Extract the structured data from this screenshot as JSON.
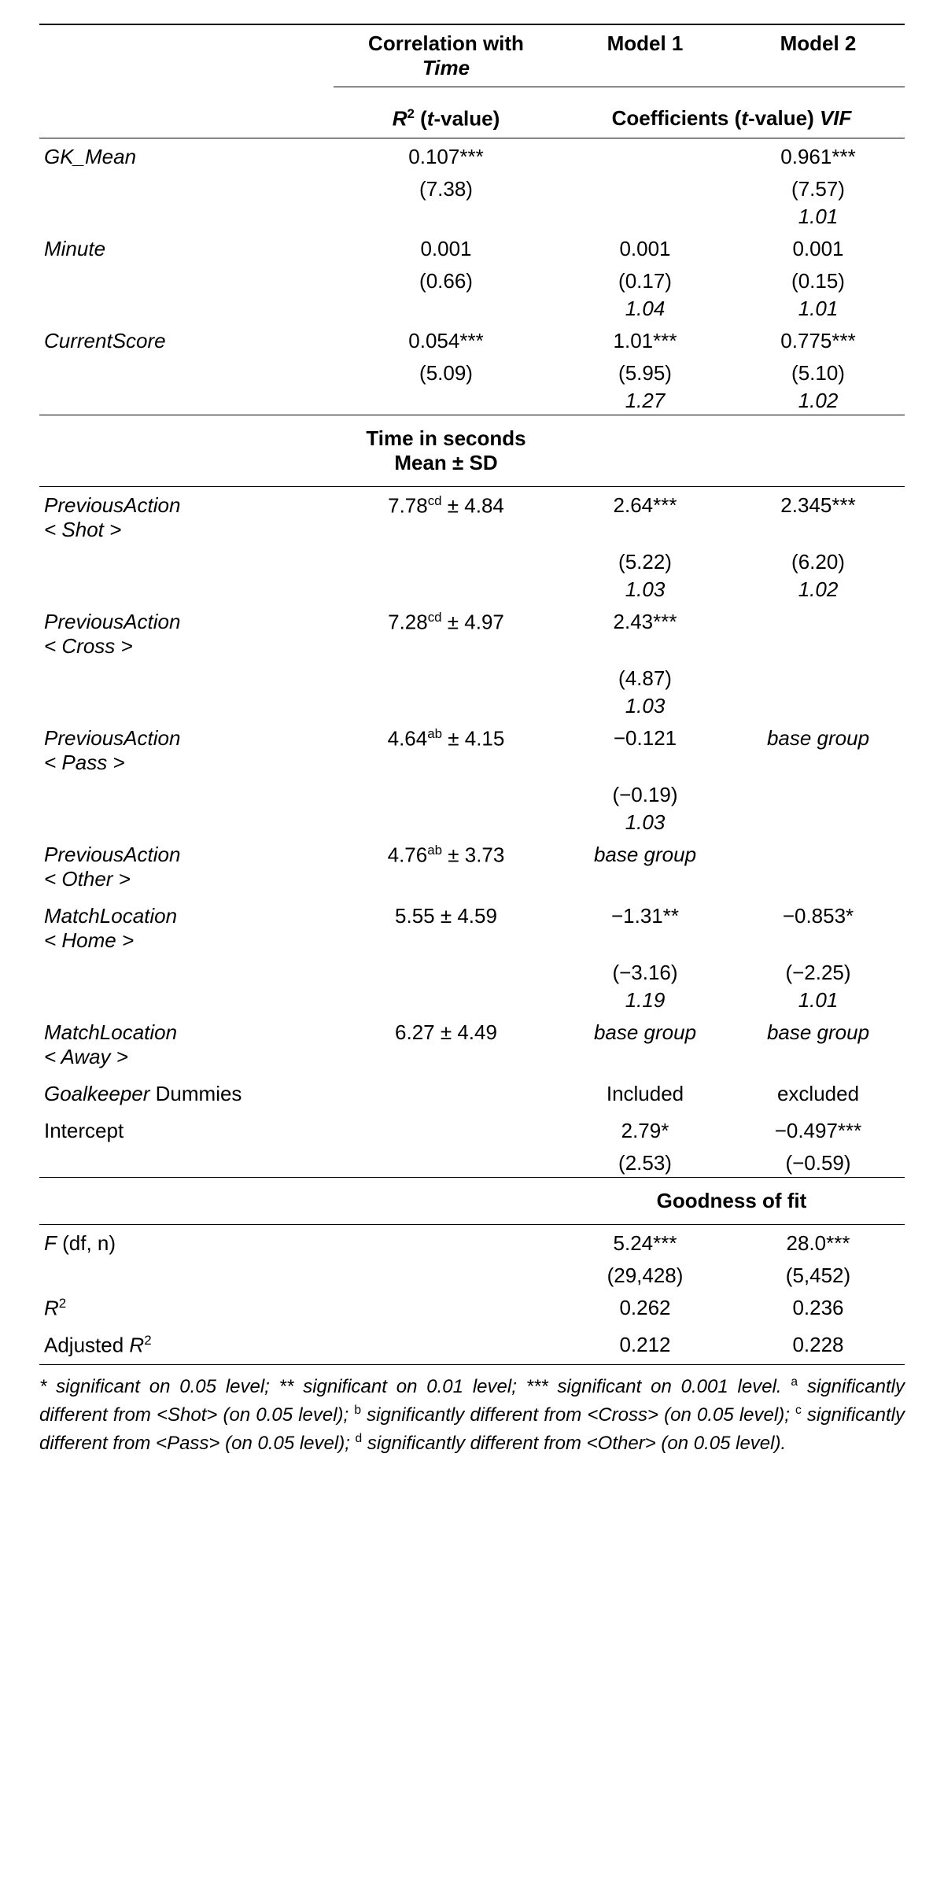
{
  "header": {
    "corr_title_a": "Correlation with",
    "corr_title_b": "Time",
    "model1": "Model 1",
    "model2": "Model 2",
    "r2_t": "R",
    "r2_t_sup": "2",
    "r2_t_rest": " (t-value)",
    "coef_a": "Coefficients (",
    "coef_b": "t",
    "coef_c": "-value) ",
    "coef_d": "VIF"
  },
  "rows1": {
    "gk_label": "GK_Mean",
    "gk_c1a": "0.107***",
    "gk_c1b": "(7.38)",
    "gk_c3a": "0.961***",
    "gk_c3b": "(7.57)",
    "gk_c3c": "1.01",
    "min_label": "Minute",
    "min_c1a": "0.001",
    "min_c1b": "(0.66)",
    "min_c2a": "0.001",
    "min_c2b": "(0.17)",
    "min_c2c": "1.04",
    "min_c3a": "0.001",
    "min_c3b": "(0.15)",
    "min_c3c": "1.01",
    "cs_label": "CurrentScore",
    "cs_c1a": "0.054***",
    "cs_c1b": "(5.09)",
    "cs_c2a": "1.01***",
    "cs_c2b": "(5.95)",
    "cs_c2c": "1.27",
    "cs_c3a": "0.775***",
    "cs_c3b": "(5.10)",
    "cs_c3c": "1.02"
  },
  "mid": {
    "timehdr_a": "Time in seconds",
    "timehdr_b": "Mean ± SD"
  },
  "rows2": {
    "pa_shot_l1": "PreviousAction",
    "pa_shot_l2": "< Shot >",
    "pa_shot_c1a": "7.78",
    "pa_shot_c1sup": "cd",
    "pa_shot_c1b": " ± 4.84",
    "pa_shot_c2a": "2.64***",
    "pa_shot_c2b": "(5.22)",
    "pa_shot_c2c": "1.03",
    "pa_shot_c3a": "2.345***",
    "pa_shot_c3b": "(6.20)",
    "pa_shot_c3c": "1.02",
    "pa_cross_l1": "PreviousAction",
    "pa_cross_l2": "< Cross >",
    "pa_cross_c1a": "7.28",
    "pa_cross_c1sup": "cd",
    "pa_cross_c1b": " ± 4.97",
    "pa_cross_c2a": "2.43***",
    "pa_cross_c2b": "(4.87)",
    "pa_cross_c2c": "1.03",
    "pa_pass_l1": "PreviousAction",
    "pa_pass_l2": "< Pass >",
    "pa_pass_c1a": "4.64",
    "pa_pass_c1sup": "ab",
    "pa_pass_c1b": " ± 4.15",
    "pa_pass_c2a": "−0.121",
    "pa_pass_c2b": "(−0.19)",
    "pa_pass_c2c": "1.03",
    "pa_pass_c3": "base group",
    "pa_other_l1": "PreviousAction",
    "pa_other_l2": "< Other >",
    "pa_other_c1a": "4.76",
    "pa_other_c1sup": "ab",
    "pa_other_c1b": " ± 3.73",
    "pa_other_c2": "base group",
    "ml_home_l1": "MatchLocation",
    "ml_home_l2": "< Home >",
    "ml_home_c1": "5.55  ± 4.59",
    "ml_home_c2a": "−1.31**",
    "ml_home_c2b": "(−3.16)",
    "ml_home_c2c": "1.19",
    "ml_home_c3a": "−0.853*",
    "ml_home_c3b": "(−2.25)",
    "ml_home_c3c": "1.01",
    "ml_away_l1": "MatchLocation",
    "ml_away_l2": "< Away >",
    "ml_away_c1": "6.27 ± 4.49",
    "ml_away_c2": "base group",
    "ml_away_c3": "base group",
    "gkd_l_a": "Goalkeeper",
    "gkd_l_b": "  Dummies",
    "gkd_c2": "Included",
    "gkd_c3": "excluded",
    "int_l": "Intercept",
    "int_c2a": "2.79*",
    "int_c2b": "(2.53)",
    "int_c3a": "−0.497***",
    "int_c3b": "(−0.59)"
  },
  "gof": {
    "title": "Goodness of fit",
    "f_l_a": "F",
    "f_l_b": " (df, n)",
    "f_c2a": "5.24***",
    "f_c2b": "(29,428)",
    "f_c3a": "28.0***",
    "f_c3b": "(5,452)",
    "r2_l_a": "R",
    "r2_l_b": "2",
    "r2_c2": "0.262",
    "r2_c3": "0.236",
    "ar2_l_a": "Adjusted ",
    "ar2_l_b": "R",
    "ar2_l_c": "2",
    "ar2_c2": "0.212",
    "ar2_c3": "0.228"
  },
  "footnote": {
    "t1": "* significant on 0.05 level; ** significant on 0.01 level; *** significant on 0.001 level. ",
    "a_sup": "a",
    "a_txt": " significantly different from <Shot> (on 0.05 level); ",
    "b_sup": "b",
    "b_txt": " significantly different from <Cross> (on 0.05 level); ",
    "c_sup": "c",
    "c_txt": " significantly different from <Pass> (on 0.05 level); ",
    "d_sup": "d",
    "d_txt": " significantly different from <Other> (on 0.05 level)."
  }
}
